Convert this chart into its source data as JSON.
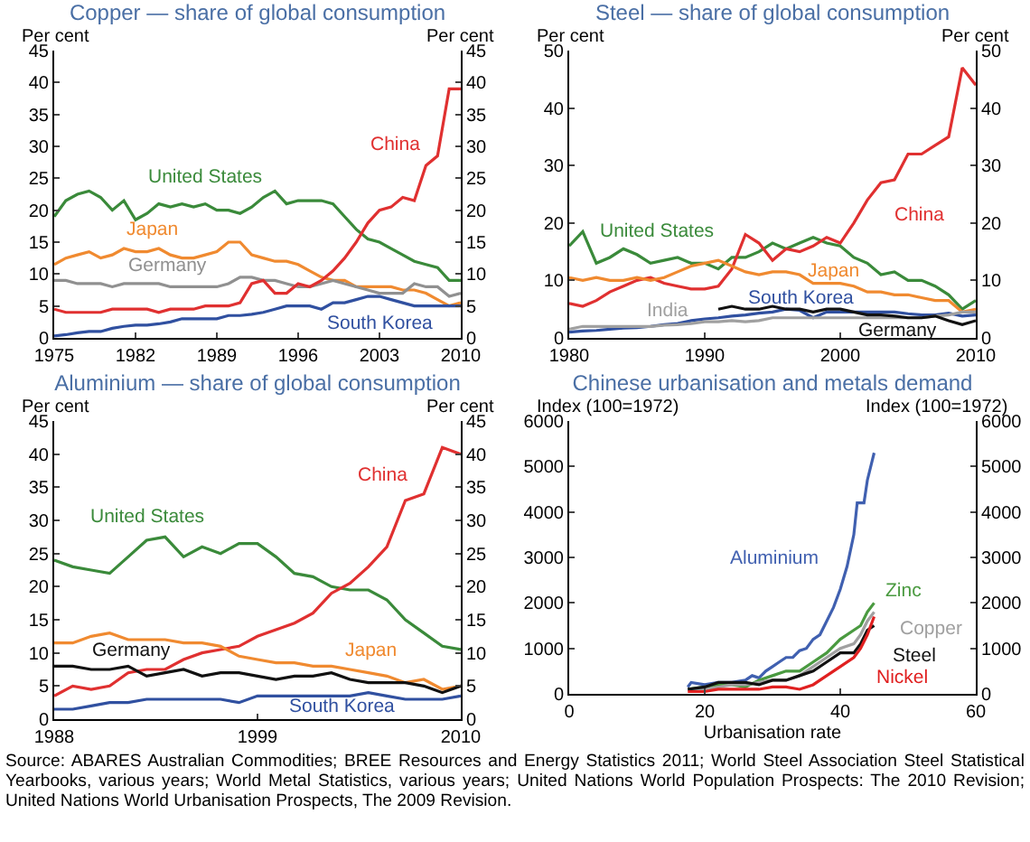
{
  "chart_data": [
    {
      "type": "line",
      "title": "Copper — share of global consumption",
      "ylabel": "Per cent",
      "y2label": "Per cent",
      "xlim": [
        1975,
        2010
      ],
      "xticks": [
        1975,
        1982,
        1989,
        1996,
        2003,
        2010
      ],
      "ylim": [
        0,
        45
      ],
      "yticks": [
        0,
        5,
        10,
        15,
        20,
        25,
        30,
        35,
        40,
        45
      ],
      "y2lim": [
        0,
        45
      ],
      "y2ticks": [
        0,
        5,
        10,
        15,
        20,
        25,
        30,
        35,
        40,
        45
      ],
      "x": [
        1975,
        1976,
        1977,
        1978,
        1979,
        1980,
        1981,
        1982,
        1983,
        1984,
        1985,
        1986,
        1987,
        1988,
        1989,
        1990,
        1991,
        1992,
        1993,
        1994,
        1995,
        1996,
        1997,
        1998,
        1999,
        2000,
        2001,
        2002,
        2003,
        2004,
        2005,
        2006,
        2007,
        2008,
        2009,
        2010
      ],
      "series": [
        {
          "name": "United States",
          "color": "#3a8a3a",
          "values": [
            19,
            21.5,
            22.5,
            23,
            22,
            20,
            21.5,
            18.5,
            19.5,
            21,
            20.5,
            21,
            20.5,
            21,
            20,
            20,
            19.5,
            20.5,
            22,
            23,
            21,
            21.5,
            21.5,
            21.5,
            21,
            19,
            17,
            15.5,
            15,
            14,
            13,
            12,
            11.5,
            11,
            9,
            9
          ]
        },
        {
          "name": "Japan",
          "color": "#f08a30",
          "values": [
            11.5,
            12.5,
            13,
            13.5,
            12.5,
            13,
            14,
            13.5,
            13.5,
            14,
            13,
            12.5,
            12.5,
            13,
            13.5,
            15,
            15,
            13,
            12.5,
            12,
            12,
            11.5,
            10.5,
            9.5,
            9,
            9,
            8,
            8,
            8,
            8,
            7.5,
            7.5,
            7,
            6,
            5,
            5.5
          ]
        },
        {
          "name": "Germany",
          "color": "#909090",
          "values": [
            9,
            9,
            8.5,
            8.5,
            8.5,
            8,
            8.5,
            8.5,
            8.5,
            8.5,
            8,
            8,
            8,
            8,
            8,
            8.5,
            9.5,
            9.5,
            9,
            9,
            8.5,
            8,
            8,
            8.5,
            9,
            8.5,
            8,
            7.5,
            7,
            7,
            7,
            8.5,
            8,
            8,
            6.5,
            7
          ]
        },
        {
          "name": "China",
          "color": "#e03030",
          "values": [
            4.5,
            4,
            4,
            4,
            4,
            4.5,
            4.5,
            4.5,
            4.5,
            4,
            4.5,
            4.5,
            4.5,
            5,
            5,
            5,
            5.5,
            8.5,
            9,
            7,
            7,
            8.5,
            8,
            9,
            10.5,
            12.5,
            15,
            18,
            20,
            20.5,
            22,
            21.5,
            27,
            28.5,
            39,
            39
          ]
        },
        {
          "name": "South Korea",
          "color": "#3050a0",
          "values": [
            0.3,
            0.5,
            0.8,
            1,
            1,
            1.5,
            1.8,
            2,
            2,
            2.2,
            2.5,
            3,
            3,
            3,
            3,
            3.5,
            3.5,
            3.7,
            4,
            4.5,
            5,
            5,
            5,
            4.5,
            5.5,
            5.5,
            6,
            6.5,
            6.5,
            6,
            5.5,
            5,
            5,
            5,
            5,
            5
          ]
        }
      ]
    },
    {
      "type": "line",
      "title": "Steel — share of global consumption",
      "ylabel": "Per cent",
      "y2label": "Per cent",
      "xlim": [
        1980,
        2010
      ],
      "xticks": [
        1980,
        1990,
        2000,
        2010
      ],
      "ylim": [
        0,
        50
      ],
      "yticks": [
        0,
        10,
        20,
        30,
        40,
        50
      ],
      "y2lim": [
        0,
        50
      ],
      "y2ticks": [
        0,
        10,
        20,
        30,
        40,
        50
      ],
      "x": [
        1980,
        1981,
        1982,
        1983,
        1984,
        1985,
        1986,
        1987,
        1988,
        1989,
        1990,
        1991,
        1992,
        1993,
        1994,
        1995,
        1996,
        1997,
        1998,
        1999,
        2000,
        2001,
        2002,
        2003,
        2004,
        2005,
        2006,
        2007,
        2008,
        2009,
        2010
      ],
      "series": [
        {
          "name": "United States",
          "color": "#3a8a3a",
          "values": [
            16,
            18.5,
            13,
            14,
            15.5,
            14.5,
            13,
            13.5,
            14,
            13,
            13,
            12,
            14,
            14,
            15,
            16.5,
            15.5,
            16.5,
            17.5,
            16.5,
            16,
            14,
            13,
            11,
            11.5,
            10,
            10,
            9,
            7.5,
            5,
            6.5
          ]
        },
        {
          "name": "China",
          "color": "#e03030",
          "values": [
            6,
            5.5,
            6.5,
            8,
            9,
            10,
            10.5,
            9.5,
            9,
            8.5,
            8.5,
            9,
            12,
            18,
            16.5,
            13.5,
            15.5,
            15,
            16,
            17.5,
            16.5,
            20,
            24,
            27,
            27.5,
            32,
            32,
            33.5,
            35,
            47,
            44
          ]
        },
        {
          "name": "Japan",
          "color": "#f08a30",
          "values": [
            10.5,
            10,
            10.5,
            10,
            10,
            10.5,
            10,
            10.5,
            11.5,
            12.5,
            13,
            13.5,
            12.5,
            11.5,
            11,
            11.5,
            11.5,
            11,
            9.5,
            9.5,
            9.5,
            9,
            8,
            8,
            7.5,
            7.5,
            7,
            6.5,
            6.5,
            4.5,
            5
          ]
        },
        {
          "name": "South Korea",
          "color": "#3050a0",
          "values": [
            1,
            1.2,
            1.3,
            1.5,
            1.7,
            1.8,
            2,
            2.3,
            2.5,
            3,
            3.3,
            3.5,
            3.8,
            4,
            4.3,
            4.5,
            5,
            4.8,
            3.5,
            4.5,
            4.5,
            4.5,
            4.5,
            4.5,
            4.5,
            4.2,
            4,
            4,
            4.3,
            3.8,
            4
          ]
        },
        {
          "name": "India",
          "color": "#a0a0a0",
          "values": [
            1.5,
            2,
            2,
            2,
            2,
            2,
            2,
            2.2,
            2.3,
            2.5,
            2.8,
            2.8,
            3,
            2.8,
            3,
            3.5,
            3.5,
            3.5,
            3.5,
            3.5,
            3.5,
            3.5,
            3.5,
            3.5,
            3.5,
            3.5,
            3.5,
            3.8,
            4,
            4.5,
            4.5
          ]
        },
        {
          "name": "Germany",
          "color": "#111111",
          "values": [
            null,
            null,
            null,
            null,
            null,
            null,
            null,
            null,
            null,
            null,
            null,
            5,
            5.5,
            5,
            5,
            5.5,
            5,
            5,
            4.5,
            5,
            5,
            4.5,
            4,
            4,
            3.8,
            3.5,
            3.5,
            3.8,
            3,
            2.3,
            3
          ]
        }
      ]
    },
    {
      "type": "line",
      "title": "Aluminium — share of global consumption",
      "ylabel": "Per cent",
      "y2label": "Per cent",
      "xlim": [
        1988,
        2010
      ],
      "xticks": [
        1988,
        1999,
        2010
      ],
      "ylim": [
        0,
        45
      ],
      "yticks": [
        0,
        5,
        10,
        15,
        20,
        25,
        30,
        35,
        40,
        45
      ],
      "y2lim": [
        0,
        45
      ],
      "y2ticks": [
        0,
        5,
        10,
        15,
        20,
        25,
        30,
        35,
        40,
        45
      ],
      "x": [
        1988,
        1989,
        1990,
        1991,
        1992,
        1993,
        1994,
        1995,
        1996,
        1997,
        1998,
        1999,
        2000,
        2001,
        2002,
        2003,
        2004,
        2005,
        2006,
        2007,
        2008,
        2009,
        2010
      ],
      "series": [
        {
          "name": "United States",
          "color": "#3a8a3a",
          "values": [
            24,
            23,
            22.5,
            22,
            24.5,
            27,
            27.5,
            24.5,
            26,
            25,
            26.5,
            26.5,
            24.5,
            22,
            21.5,
            20,
            19.5,
            19.5,
            18,
            15,
            13,
            11,
            10.5
          ]
        },
        {
          "name": "China",
          "color": "#e03030",
          "values": [
            3.5,
            5,
            4.5,
            5,
            7,
            7.5,
            7.5,
            9,
            10,
            10.5,
            11,
            12.5,
            13.5,
            14.5,
            16,
            19,
            20.5,
            23,
            26,
            33,
            34,
            41,
            40
          ]
        },
        {
          "name": "Japan",
          "color": "#f08a30",
          "values": [
            11.5,
            11.5,
            12.5,
            13,
            12,
            12,
            12,
            11.5,
            11.5,
            11,
            9.5,
            9,
            8.5,
            8.5,
            8,
            8,
            7.5,
            7,
            6.5,
            5.5,
            6,
            4.5,
            5
          ]
        },
        {
          "name": "Germany",
          "color": "#111111",
          "values": [
            8,
            8,
            7.5,
            7.5,
            8,
            6.5,
            7,
            7.5,
            6.5,
            7,
            7,
            6.5,
            6,
            6.5,
            6.5,
            7,
            6,
            5.5,
            5.5,
            5.5,
            5,
            4,
            5
          ]
        },
        {
          "name": "South Korea",
          "color": "#3050a0",
          "values": [
            1.5,
            1.5,
            2,
            2.5,
            2.5,
            3,
            3,
            3,
            3,
            3,
            2.5,
            3.5,
            3.5,
            3.5,
            3.5,
            3.5,
            3.5,
            4,
            3.5,
            3,
            3,
            3,
            3.5
          ]
        }
      ]
    },
    {
      "type": "line",
      "title": "Chinese urbanisation and metals demand",
      "xlabel": "Urbanisation rate",
      "ylabel": "Index (100=1972)",
      "y2label": "Index (100=1972)",
      "xlim": [
        0,
        60
      ],
      "xticks": [
        0,
        20,
        40,
        60
      ],
      "ylim": [
        0,
        6000
      ],
      "yticks": [
        0,
        1000,
        2000,
        3000,
        4000,
        5000,
        6000
      ],
      "y2lim": [
        0,
        6000
      ],
      "y2ticks": [
        0,
        1000,
        2000,
        3000,
        4000,
        5000,
        6000
      ],
      "annotations": [
        "Source: ABARES Australian Commodities; BREE Resources and Energy Statistics 2011; World Steel Association Steel Statistical Yearbooks, various years; World Metal Statistics, various years; United Nations World Population Prospects: The 2010 Revision; United Nations World Urbanisation Prospects, The 2009 Revision."
      ],
      "series": [
        {
          "name": "Aluminium",
          "color": "#4060b0",
          "x": [
            17.5,
            18,
            20,
            22,
            24,
            26,
            27,
            28,
            29,
            30,
            31,
            32,
            33,
            34,
            35,
            36,
            37,
            38,
            39,
            40,
            41,
            42,
            42.5,
            43.5,
            44,
            45
          ],
          "values": [
            150,
            250,
            200,
            250,
            250,
            300,
            400,
            350,
            500,
            600,
            700,
            800,
            800,
            950,
            1000,
            1200,
            1300,
            1600,
            1900,
            2300,
            2800,
            3500,
            4200,
            4200,
            4700,
            5300
          ]
        },
        {
          "name": "Zinc",
          "color": "#4a9a40",
          "x": [
            17.5,
            20,
            22,
            24,
            26,
            28,
            30,
            32,
            34,
            36,
            38,
            40,
            42,
            43,
            44,
            45
          ],
          "values": [
            100,
            150,
            200,
            200,
            150,
            300,
            400,
            500,
            500,
            700,
            900,
            1200,
            1400,
            1500,
            1800,
            2000
          ]
        },
        {
          "name": "Copper",
          "color": "#a0a0a0",
          "x": [
            17.5,
            20,
            22,
            24,
            26,
            28,
            30,
            32,
            34,
            36,
            38,
            40,
            42,
            43,
            44,
            45
          ],
          "values": [
            100,
            100,
            150,
            200,
            200,
            250,
            300,
            300,
            400,
            600,
            800,
            1000,
            1100,
            1300,
            1600,
            1800
          ]
        },
        {
          "name": "Steel",
          "color": "#111111",
          "x": [
            17.5,
            20,
            22,
            24,
            26,
            28,
            30,
            32,
            34,
            36,
            38,
            40,
            42,
            43,
            44,
            45
          ],
          "values": [
            100,
            150,
            250,
            250,
            250,
            200,
            300,
            300,
            400,
            500,
            700,
            900,
            900,
            1100,
            1400,
            1500
          ]
        },
        {
          "name": "Nickel",
          "color": "#e02020",
          "x": [
            17.5,
            20,
            22,
            24,
            26,
            28,
            30,
            32,
            34,
            36,
            38,
            40,
            42,
            43,
            44,
            45
          ],
          "values": [
            50,
            50,
            100,
            100,
            100,
            100,
            150,
            150,
            100,
            200,
            400,
            600,
            800,
            1000,
            1300,
            1700
          ]
        }
      ]
    }
  ]
}
